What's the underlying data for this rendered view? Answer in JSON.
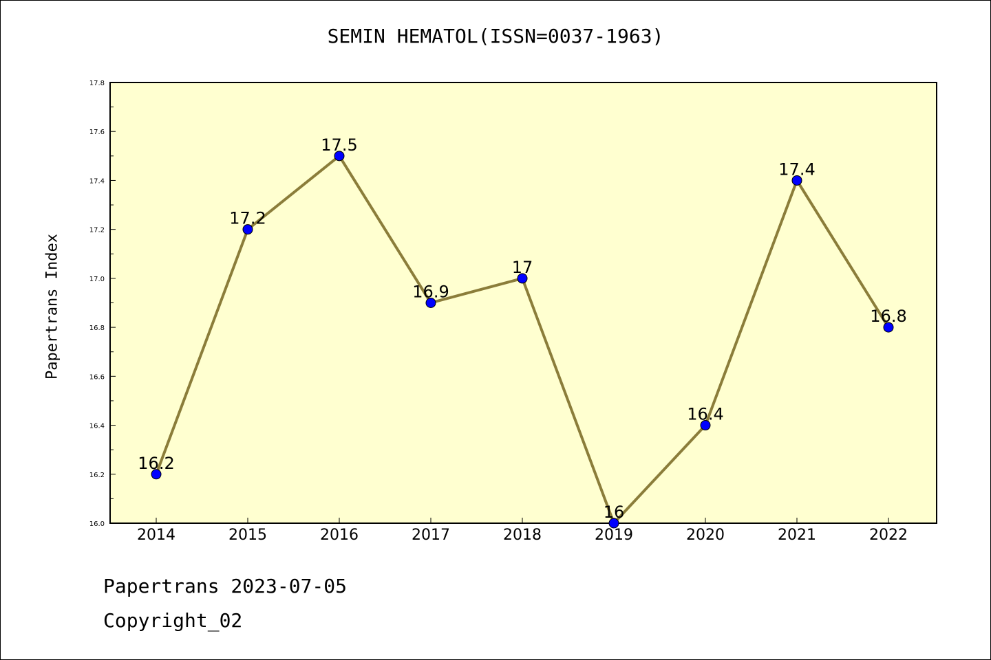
{
  "chart_data": {
    "type": "line",
    "title": "SEMIN HEMATOL(ISSN=0037-1963)",
    "xlabel": "",
    "ylabel": "Papertrans Index",
    "categories": [
      "2014",
      "2015",
      "2016",
      "2017",
      "2018",
      "2019",
      "2020",
      "2021",
      "2022"
    ],
    "values": [
      16.2,
      17.2,
      17.5,
      16.9,
      17.0,
      16.0,
      16.4,
      17.4,
      16.8
    ],
    "data_labels": [
      "16.2",
      "17.2",
      "17.5",
      "16.9",
      "17",
      "16",
      "16.4",
      "17.4",
      "16.8"
    ],
    "ylim": [
      16.0,
      17.8
    ],
    "y_ticks": [
      "16.0",
      "16.2",
      "16.4",
      "16.6",
      "16.8",
      "17.0",
      "17.2",
      "17.4",
      "17.6",
      "17.8"
    ],
    "grid": false,
    "colors": {
      "plot_background": "#ffffd0",
      "line": "#8b7d3a",
      "marker": "#0000ff"
    }
  },
  "footer": {
    "date_line": "Papertrans 2023-07-05",
    "copyright_line": "Copyright_02"
  }
}
